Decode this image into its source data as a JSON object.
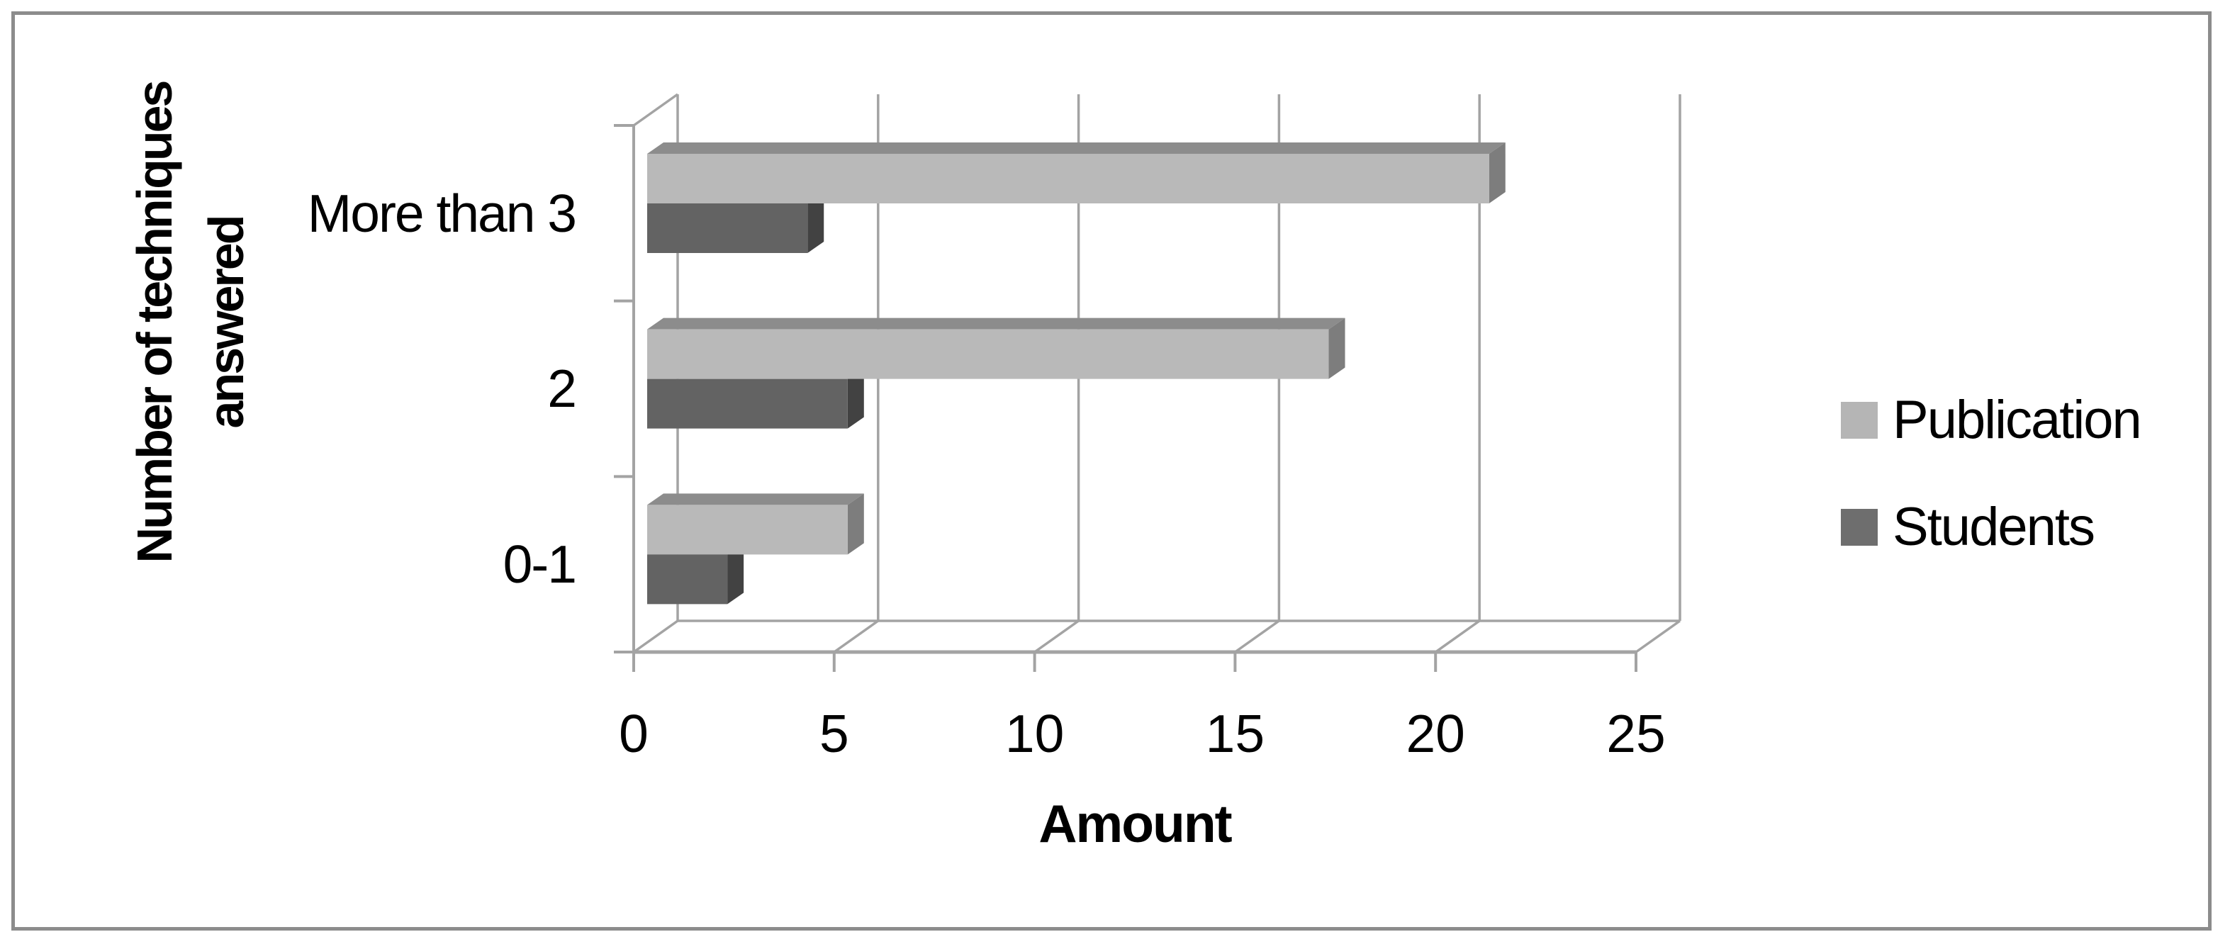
{
  "chart_data": {
    "type": "bar",
    "orientation": "horizontal",
    "style": "3d",
    "categories": [
      "More than 3",
      "2",
      "0-1"
    ],
    "series": [
      {
        "name": "Publication",
        "values": [
          21,
          17,
          5
        ],
        "color": "#b9b9b9",
        "top_color": "#8c8c8c",
        "side_color": "#7d7d7d",
        "legend_color": "#b5b5b5"
      },
      {
        "name": "Students",
        "values": [
          4,
          5,
          2
        ],
        "color": "#636363",
        "top_color": "#4a4a4a",
        "side_color": "#424242",
        "legend_color": "#6e6e6e"
      }
    ],
    "xlabel": "Amount",
    "ylabel": "Number of techniques answered",
    "ylabel_lines": [
      "Number of techniques",
      "answered"
    ],
    "x_ticks": [
      0,
      5,
      10,
      15,
      20,
      25
    ],
    "xlim": [
      0,
      25
    ],
    "grid": "vertical-back-wall",
    "legend_position": "right",
    "axis_color": "#a3a3a3",
    "text_color": "#000000",
    "frame_color": "#8c8c8c",
    "background_color": "#ffffff"
  }
}
